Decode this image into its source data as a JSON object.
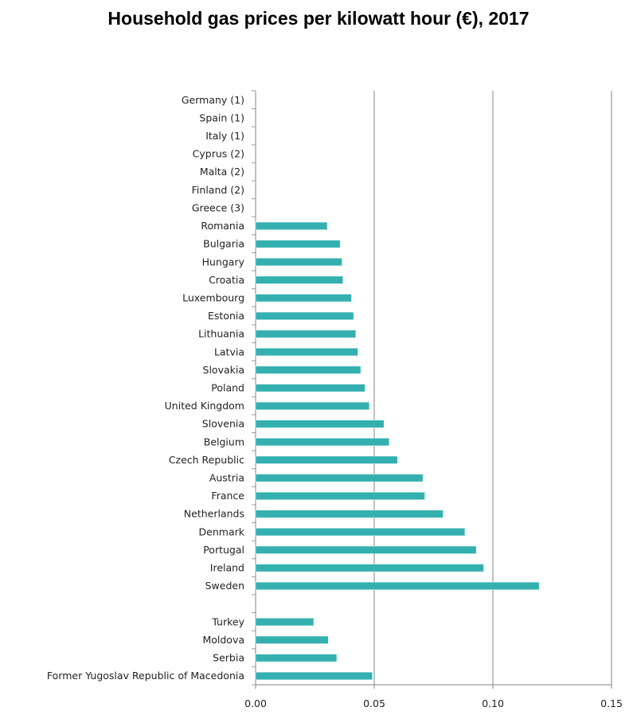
{
  "chart_data": {
    "type": "bar",
    "orientation": "horizontal",
    "title": "Household gas prices per kilowatt hour (€),  2017",
    "xlabel": "",
    "ylabel": "",
    "xlim": [
      0,
      0.15
    ],
    "xticks": [
      "0.00",
      "0.05",
      "0.10",
      "0.15"
    ],
    "grid": "vertical",
    "bar_color": "#33b0af",
    "categories": [
      "Germany (1)",
      "Spain (1)",
      "Italy (1)",
      "Cyprus (2)",
      "Malta (2)",
      "Finland (2)",
      "Greece (3)",
      "Romania",
      "Bulgaria",
      "Hungary",
      "Croatia",
      "Luxembourg",
      "Estonia",
      "Lithuania",
      "Latvia",
      "Slovakia",
      "Poland",
      "United Kingdom",
      "Slovenia",
      "Belgium",
      "Czech Republic",
      "Austria",
      "France",
      "Netherlands",
      "Denmark",
      "Portugal",
      "Ireland",
      "Sweden",
      "",
      "Turkey",
      "Moldova",
      "Serbia",
      "Former Yugoslav Republic of Macedonia"
    ],
    "values": [
      null,
      null,
      null,
      null,
      null,
      null,
      null,
      0.0302,
      0.0356,
      0.0364,
      0.0368,
      0.0404,
      0.0413,
      0.0422,
      0.0431,
      0.0443,
      0.0461,
      0.0479,
      0.0541,
      0.0563,
      0.0598,
      0.0705,
      0.0713,
      0.079,
      0.0882,
      0.093,
      0.0961,
      0.1195,
      null,
      0.0245,
      0.0306,
      0.0342,
      0.0492
    ]
  }
}
